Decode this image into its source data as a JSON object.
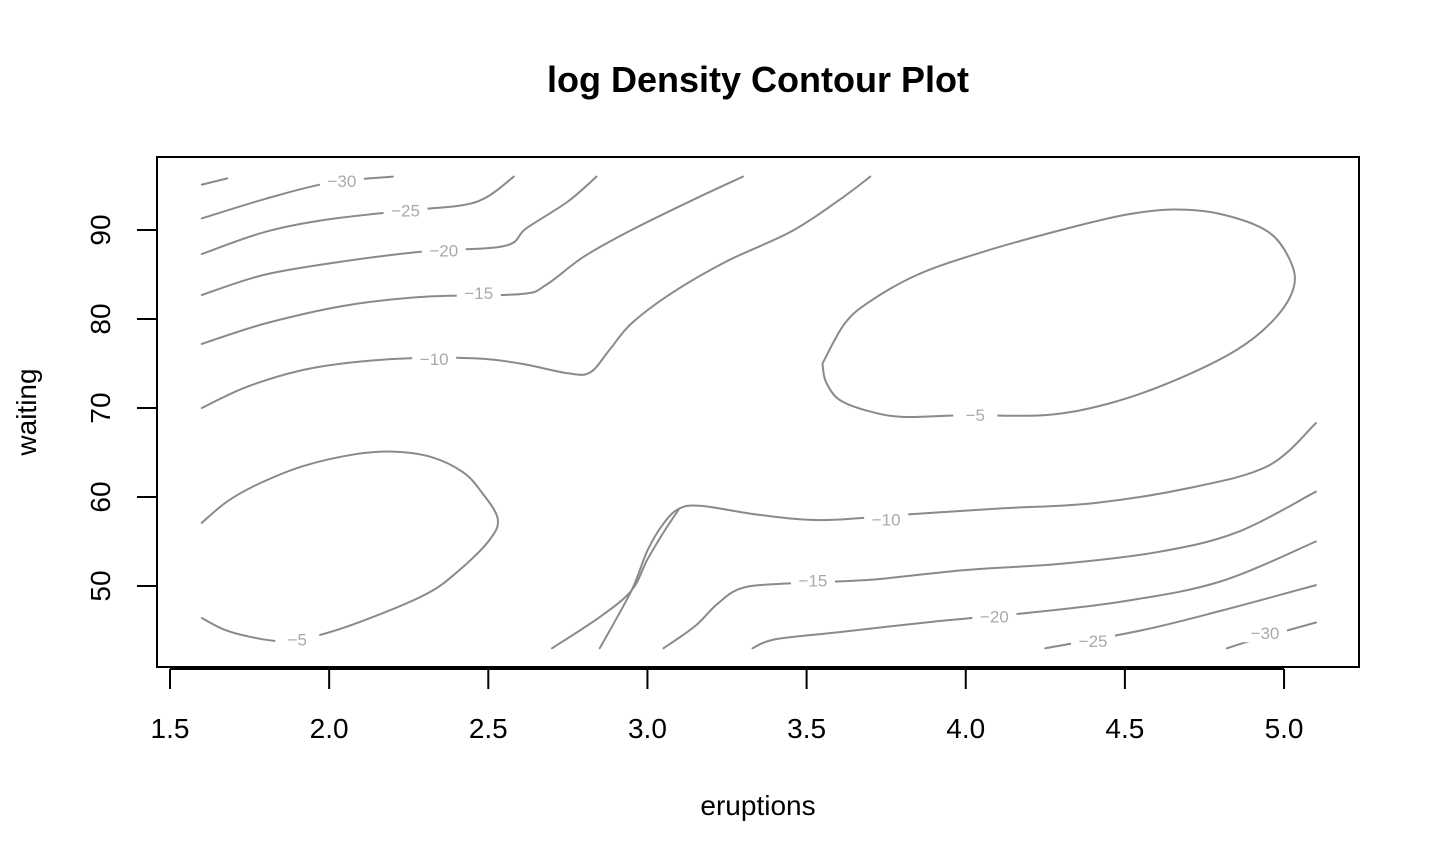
{
  "chart_data": {
    "type": "contour",
    "title": "log Density Contour Plot",
    "xlabel": "eruptions",
    "ylabel": "waiting",
    "xlim": [
      1.47,
      5.25
    ],
    "ylim": [
      41,
      98.5
    ],
    "x_ticks": [
      1.5,
      2.0,
      2.5,
      3.0,
      3.5,
      4.0,
      4.5,
      5.0
    ],
    "x_tick_labels": [
      "1.5",
      "2.0",
      "2.5",
      "3.0",
      "3.5",
      "4.0",
      "4.5",
      "5.0"
    ],
    "y_ticks": [
      50,
      60,
      70,
      80,
      90
    ],
    "y_tick_labels": [
      "50",
      "60",
      "70",
      "80",
      "90"
    ],
    "contours": [
      {
        "level": -5,
        "label": "−5",
        "label_at": [
          1.9,
          44.0
        ],
        "paths": [
          [
            [
              1.6,
              57.1
            ],
            [
              1.68,
              59.5
            ],
            [
              1.78,
              61.5
            ],
            [
              1.92,
              63.5
            ],
            [
              2.08,
              64.8
            ],
            [
              2.2,
              65.1
            ],
            [
              2.32,
              64.5
            ],
            [
              2.42,
              62.8
            ],
            [
              2.48,
              60.5
            ],
            [
              2.53,
              57.5
            ],
            [
              2.5,
              55.0
            ],
            [
              2.4,
              51.5
            ],
            [
              2.3,
              49.0
            ],
            [
              2.1,
              46.0
            ],
            [
              1.95,
              44.3
            ],
            [
              1.85,
              43.8
            ],
            [
              1.75,
              44.3
            ],
            [
              1.67,
              45.1
            ],
            [
              1.6,
              46.4
            ]
          ]
        ]
      },
      {
        "level": -5,
        "label": "−5",
        "label_at": [
          4.03,
          69.2
        ],
        "paths": [
          [
            [
              3.55,
              75.0
            ],
            [
              3.62,
              79.5
            ],
            [
              3.7,
              82.0
            ],
            [
              3.85,
              85.0
            ],
            [
              4.05,
              87.5
            ],
            [
              4.3,
              90.0
            ],
            [
              4.5,
              91.7
            ],
            [
              4.65,
              92.3
            ],
            [
              4.8,
              91.8
            ],
            [
              4.95,
              89.8
            ],
            [
              5.02,
              86.5
            ],
            [
              5.03,
              83.5
            ],
            [
              4.97,
              80.0
            ],
            [
              4.85,
              76.5
            ],
            [
              4.65,
              73.0
            ],
            [
              4.45,
              70.5
            ],
            [
              4.25,
              69.2
            ],
            [
              4.0,
              69.2
            ],
            [
              3.8,
              69.0
            ],
            [
              3.68,
              69.8
            ],
            [
              3.6,
              71.0
            ],
            [
              3.56,
              73.0
            ],
            [
              3.55,
              75.0
            ]
          ]
        ]
      },
      {
        "level": -10,
        "label": "−10",
        "label_at": [
          2.33,
          75.5
        ],
        "paths": [
          [
            [
              1.6,
              70.0
            ],
            [
              1.75,
              72.5
            ],
            [
              1.95,
              74.5
            ],
            [
              2.2,
              75.5
            ],
            [
              2.45,
              75.6
            ],
            [
              2.6,
              75.0
            ],
            [
              2.75,
              73.9
            ],
            [
              2.82,
              74.0
            ],
            [
              2.88,
              76.5
            ],
            [
              2.95,
              79.5
            ],
            [
              3.08,
              83.0
            ],
            [
              3.25,
              86.5
            ],
            [
              3.45,
              89.8
            ],
            [
              3.6,
              93.3
            ],
            [
              3.7,
              96.0
            ]
          ]
        ]
      },
      {
        "level": -10,
        "label": "−10",
        "label_at": [
          3.75,
          57.5
        ],
        "paths": [
          [
            [
              2.85,
              43.0
            ],
            [
              2.95,
              49.5
            ],
            [
              3.0,
              54.0
            ],
            [
              3.05,
              57.0
            ],
            [
              3.1,
              58.7
            ],
            [
              3.17,
              59.0
            ],
            [
              3.35,
              58.0
            ],
            [
              3.55,
              57.4
            ],
            [
              3.8,
              58.0
            ],
            [
              4.1,
              58.7
            ],
            [
              4.4,
              59.3
            ],
            [
              4.7,
              61.0
            ],
            [
              4.95,
              63.5
            ],
            [
              5.1,
              68.3
            ]
          ]
        ]
      },
      {
        "level": -15,
        "label": "−15",
        "label_at": [
          2.47,
          82.9
        ],
        "paths": [
          [
            [
              1.6,
              77.2
            ],
            [
              1.8,
              79.5
            ],
            [
              2.05,
              81.5
            ],
            [
              2.3,
              82.5
            ],
            [
              2.6,
              82.8
            ],
            [
              2.68,
              83.8
            ],
            [
              2.8,
              87.0
            ],
            [
              2.95,
              90.0
            ],
            [
              3.15,
              93.5
            ],
            [
              3.3,
              96.0
            ]
          ]
        ]
      },
      {
        "level": -15,
        "label": "−15",
        "label_at": [
          3.52,
          50.6
        ],
        "paths": [
          [
            [
              2.7,
              43.0
            ],
            [
              2.85,
              46.5
            ],
            [
              2.95,
              49.5
            ],
            [
              3.0,
              53.0
            ],
            [
              3.05,
              56.0
            ],
            [
              3.1,
              58.7
            ]
          ]
        ],
        "paths_lower": [
          [
            [
              3.05,
              43.0
            ],
            [
              3.15,
              45.5
            ],
            [
              3.22,
              48.0
            ],
            [
              3.3,
              49.8
            ],
            [
              3.45,
              50.3
            ],
            [
              3.7,
              50.7
            ],
            [
              4.0,
              51.8
            ],
            [
              4.3,
              52.5
            ],
            [
              4.6,
              53.8
            ],
            [
              4.85,
              56.0
            ],
            [
              5.1,
              60.6
            ]
          ]
        ]
      },
      {
        "level": -20,
        "label": "−20",
        "label_at": [
          2.36,
          87.7
        ],
        "paths": [
          [
            [
              1.6,
              82.7
            ],
            [
              1.8,
              85.0
            ],
            [
              2.05,
              86.5
            ],
            [
              2.3,
              87.6
            ],
            [
              2.55,
              88.2
            ],
            [
              2.62,
              90.2
            ],
            [
              2.75,
              93.2
            ],
            [
              2.84,
              96.0
            ]
          ]
        ]
      },
      {
        "level": -20,
        "label": "−20",
        "label_at": [
          4.09,
          46.6
        ],
        "paths": [
          [
            [
              3.33,
              43.0
            ],
            [
              3.4,
              44.0
            ],
            [
              3.6,
              44.8
            ],
            [
              3.9,
              46.0
            ],
            [
              4.2,
              47.0
            ],
            [
              4.5,
              48.3
            ],
            [
              4.8,
              50.5
            ],
            [
              5.1,
              55.0
            ]
          ]
        ]
      },
      {
        "level": -25,
        "label": "−25",
        "label_at": [
          2.24,
          92.2
        ],
        "paths": [
          [
            [
              1.6,
              87.3
            ],
            [
              1.8,
              89.8
            ],
            [
              2.0,
              91.2
            ],
            [
              2.25,
              92.2
            ],
            [
              2.42,
              92.8
            ],
            [
              2.5,
              93.8
            ],
            [
              2.58,
              96.0
            ]
          ]
        ]
      },
      {
        "level": -25,
        "label": "−25",
        "label_at": [
          4.4,
          43.8
        ],
        "paths": [
          [
            [
              4.25,
              43.0
            ],
            [
              4.55,
              45.0
            ],
            [
              4.8,
              47.2
            ],
            [
              5.1,
              50.1
            ]
          ]
        ]
      },
      {
        "level": -30,
        "label": "−30",
        "label_at": [
          2.04,
          95.5
        ],
        "paths": [
          [
            [
              1.6,
              95.1
            ],
            [
              1.68,
              95.8
            ]
          ],
          [
            [
              1.6,
              91.3
            ],
            [
              1.8,
              93.5
            ],
            [
              2.0,
              95.3
            ],
            [
              2.2,
              96.0
            ]
          ]
        ]
      },
      {
        "level": -30,
        "label": "−30",
        "label_at": [
          4.94,
          44.7
        ],
        "paths": [
          [
            [
              4.82,
              43.0
            ],
            [
              4.9,
              43.9
            ],
            [
              5.1,
              45.9
            ]
          ]
        ]
      }
    ]
  }
}
